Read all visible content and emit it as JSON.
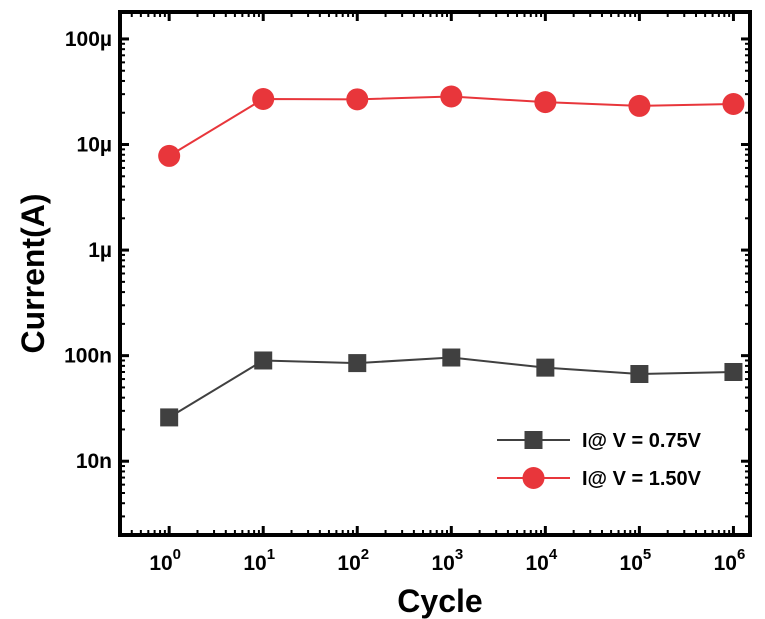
{
  "chart_data": {
    "type": "line",
    "xlabel": "Cycle",
    "ylabel": "Current(A)",
    "x_scale": "log",
    "y_scale": "log",
    "xlim": [
      0.3,
      1500000
    ],
    "ylim": [
      2e-09,
      0.00018
    ],
    "x": [
      1,
      10,
      100,
      1000,
      10000,
      100000,
      1000000
    ],
    "x_ticks": [
      {
        "base": "10",
        "exp": "0"
      },
      {
        "base": "10",
        "exp": "1"
      },
      {
        "base": "10",
        "exp": "2"
      },
      {
        "base": "10",
        "exp": "3"
      },
      {
        "base": "10",
        "exp": "4"
      },
      {
        "base": "10",
        "exp": "5"
      },
      {
        "base": "10",
        "exp": "6"
      }
    ],
    "y_ticks": [
      {
        "value": 1e-08,
        "label": "10n"
      },
      {
        "value": 1e-07,
        "label": "100n"
      },
      {
        "value": 1e-06,
        "label": "1µ"
      },
      {
        "value": 1e-05,
        "label": "10µ"
      },
      {
        "value": 0.0001,
        "label": "100µ"
      }
    ],
    "grid": false,
    "legend_position": "bottom-right",
    "series": [
      {
        "name": "I@ V = 0.75V",
        "color": "#404040",
        "marker": "square",
        "values": [
          2.6e-08,
          9e-08,
          8.5e-08,
          9.6e-08,
          7.7e-08,
          6.7e-08,
          7e-08
        ]
      },
      {
        "name": "I@ V = 1.50V",
        "color": "#e8363b",
        "marker": "circle",
        "values": [
          7.8e-06,
          2.7e-05,
          2.68e-05,
          2.85e-05,
          2.52e-05,
          2.32e-05,
          2.42e-05
        ]
      }
    ]
  }
}
